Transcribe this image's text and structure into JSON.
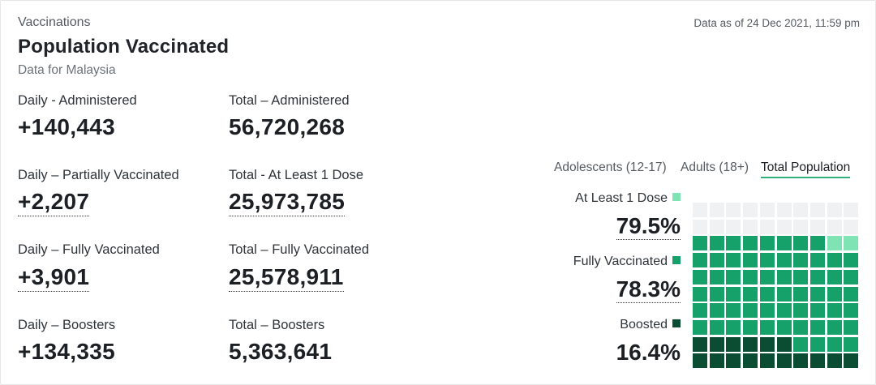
{
  "header": {
    "eyebrow": "Vaccinations",
    "title": "Population Vaccinated",
    "subtitle": "Data for Malaysia",
    "as_of": "Data as of 24 Dec 2021, 11:59 pm"
  },
  "stats": {
    "daily_administered": {
      "label": "Daily - Administered",
      "value": "+140,443"
    },
    "total_administered": {
      "label": "Total – Administered",
      "value": "56,720,268"
    },
    "daily_partial": {
      "label": "Daily – Partially Vaccinated",
      "value": "+2,207"
    },
    "total_one_dose": {
      "label": "Total - At Least 1 Dose",
      "value": "25,973,785"
    },
    "daily_full": {
      "label": "Daily – Fully Vaccinated",
      "value": "+3,901"
    },
    "total_full": {
      "label": "Total – Fully Vaccinated",
      "value": "25,578,911"
    },
    "daily_boosters": {
      "label": "Daily – Boosters",
      "value": "+134,335"
    },
    "total_boosters": {
      "label": "Total – Boosters",
      "value": "5,363,641"
    }
  },
  "tabs": [
    {
      "label": "Adolescents (12-17)",
      "active": false
    },
    {
      "label": "Adults (18+)",
      "active": false
    },
    {
      "label": "Total Population",
      "active": true
    }
  ],
  "legend": {
    "one_dose": {
      "label": "At Least 1 Dose",
      "value": "79.5%",
      "color": "#7fe3b3"
    },
    "fully": {
      "label": "Fully Vaccinated",
      "value": "78.3%",
      "color": "#16a06a"
    },
    "boosted": {
      "label": "Boosted",
      "value": "16.4%",
      "color": "#0b4d32"
    }
  },
  "waffle": {
    "total_cells": 100,
    "one_dose_pct": 79.5,
    "fully_pct": 78.3,
    "boosted_pct": 16.4,
    "colors": {
      "empty": "#f0f1f2",
      "one_dose": "#7fe3b3",
      "fully": "#16a06a",
      "boosted": "#0b4d32"
    }
  }
}
